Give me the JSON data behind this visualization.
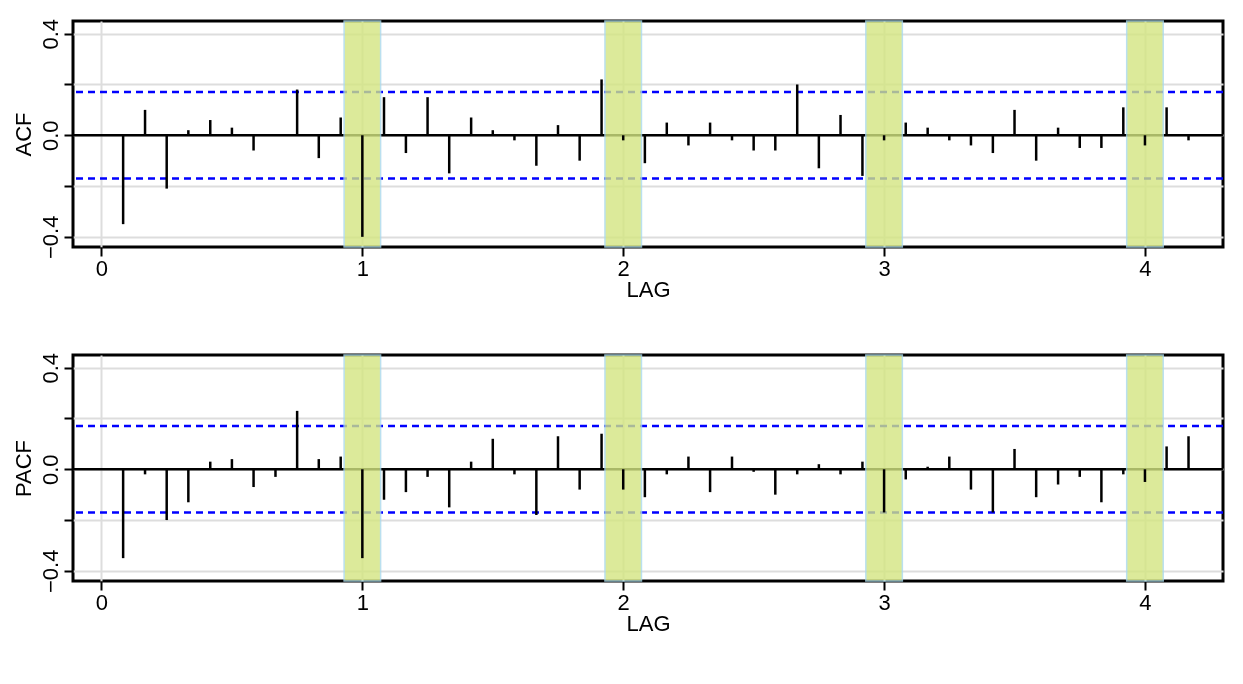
{
  "chart_data": [
    {
      "type": "bar",
      "xlabel": "LAG",
      "ylabel": "ACF",
      "color": "#000000",
      "grid": true,
      "x": [
        0.083,
        0.167,
        0.25,
        0.333,
        0.417,
        0.5,
        0.583,
        0.667,
        0.75,
        0.833,
        0.917,
        1.0,
        1.083,
        1.167,
        1.25,
        1.333,
        1.417,
        1.5,
        1.583,
        1.667,
        1.75,
        1.833,
        1.917,
        2.0,
        2.083,
        2.167,
        2.25,
        2.333,
        2.417,
        2.5,
        2.583,
        2.667,
        2.75,
        2.833,
        2.917,
        3.0,
        3.083,
        3.167,
        3.25,
        3.333,
        3.417,
        3.5,
        3.583,
        3.667,
        3.75,
        3.833,
        3.917,
        4.0,
        4.083,
        4.167
      ],
      "values": [
        -0.35,
        0.1,
        -0.21,
        0.02,
        0.06,
        0.03,
        -0.06,
        0.0,
        0.18,
        -0.09,
        0.07,
        -0.4,
        0.15,
        -0.07,
        0.15,
        -0.15,
        0.07,
        0.02,
        -0.02,
        -0.12,
        0.04,
        -0.1,
        0.22,
        -0.02,
        -0.11,
        0.05,
        -0.04,
        0.05,
        -0.02,
        -0.06,
        -0.06,
        0.2,
        -0.13,
        0.08,
        -0.16,
        -0.02,
        0.05,
        0.03,
        -0.02,
        -0.04,
        -0.07,
        0.1,
        -0.1,
        0.03,
        -0.05,
        -0.05,
        0.11,
        -0.04,
        0.11,
        -0.02
      ],
      "xlim": [
        -0.09,
        4.28
      ],
      "ylim": [
        -0.44,
        0.45
      ],
      "xticks": [
        0,
        1,
        2,
        3,
        4
      ],
      "yticks": [
        {
          "value": -0.4,
          "label": "−0.4"
        },
        {
          "value": -0.2,
          "label": null
        },
        {
          "value": 0,
          "label": "0.0"
        },
        {
          "value": 0.2,
          "label": null
        },
        0.4
      ],
      "ref_lines": [
        {
          "axis": "y",
          "value": 0,
          "color": "#000000",
          "line_style": "solid"
        },
        {
          "axis": "y",
          "value": 0.17,
          "color": "#0000ff",
          "line_style": "dashed"
        },
        {
          "axis": "y",
          "value": -0.17,
          "color": "#0000ff",
          "line_style": "dashed"
        }
      ],
      "bands": [
        {
          "axis": "x",
          "from": 0.93,
          "to": 1.07,
          "color": "#d4e681"
        },
        {
          "axis": "x",
          "from": 1.93,
          "to": 2.07,
          "color": "#d4e681"
        },
        {
          "axis": "x",
          "from": 2.93,
          "to": 3.07,
          "color": "#d4e681"
        },
        {
          "axis": "x",
          "from": 3.93,
          "to": 4.07,
          "color": "#d4e681"
        }
      ]
    },
    {
      "type": "bar",
      "xlabel": "LAG",
      "ylabel": "PACF",
      "color": "#000000",
      "grid": true,
      "x": [
        0.083,
        0.167,
        0.25,
        0.333,
        0.417,
        0.5,
        0.583,
        0.667,
        0.75,
        0.833,
        0.917,
        1.0,
        1.083,
        1.167,
        1.25,
        1.333,
        1.417,
        1.5,
        1.583,
        1.667,
        1.75,
        1.833,
        1.917,
        2.0,
        2.083,
        2.167,
        2.25,
        2.333,
        2.417,
        2.5,
        2.583,
        2.667,
        2.75,
        2.833,
        2.917,
        3.0,
        3.083,
        3.167,
        3.25,
        3.333,
        3.417,
        3.5,
        3.583,
        3.667,
        3.75,
        3.833,
        3.917,
        4.0,
        4.083,
        4.167
      ],
      "values": [
        -0.35,
        -0.02,
        -0.2,
        -0.13,
        0.03,
        0.04,
        -0.07,
        -0.03,
        0.23,
        0.04,
        0.05,
        -0.35,
        -0.12,
        -0.09,
        -0.03,
        -0.15,
        0.03,
        0.12,
        -0.02,
        -0.18,
        0.13,
        -0.08,
        0.14,
        -0.08,
        -0.11,
        -0.02,
        0.05,
        -0.09,
        0.05,
        -0.01,
        -0.1,
        -0.02,
        0.02,
        -0.02,
        0.03,
        -0.17,
        -0.04,
        0.01,
        0.05,
        -0.08,
        -0.17,
        0.08,
        -0.11,
        -0.06,
        -0.03,
        -0.13,
        -0.02,
        -0.05,
        0.09,
        0.13
      ],
      "xlim": [
        -0.09,
        4.28
      ],
      "ylim": [
        -0.44,
        0.45
      ],
      "xticks": [
        0,
        1,
        2,
        3,
        4
      ],
      "yticks": [
        {
          "value": -0.4,
          "label": "−0.4"
        },
        {
          "value": -0.2,
          "label": null
        },
        {
          "value": 0,
          "label": "0.0"
        },
        {
          "value": 0.2,
          "label": null
        },
        0.4
      ],
      "ref_lines": [
        {
          "axis": "y",
          "value": 0,
          "color": "#000000",
          "line_style": "solid"
        },
        {
          "axis": "y",
          "value": 0.17,
          "color": "#0000ff",
          "line_style": "dashed"
        },
        {
          "axis": "y",
          "value": -0.17,
          "color": "#0000ff",
          "line_style": "dashed"
        }
      ],
      "bands": [
        {
          "axis": "x",
          "from": 0.93,
          "to": 1.07,
          "color": "#d4e681"
        },
        {
          "axis": "x",
          "from": 1.93,
          "to": 2.07,
          "color": "#d4e681"
        },
        {
          "axis": "x",
          "from": 2.93,
          "to": 3.07,
          "color": "#d4e681"
        },
        {
          "axis": "x",
          "from": 3.93,
          "to": 4.07,
          "color": "#d4e681"
        }
      ]
    }
  ]
}
